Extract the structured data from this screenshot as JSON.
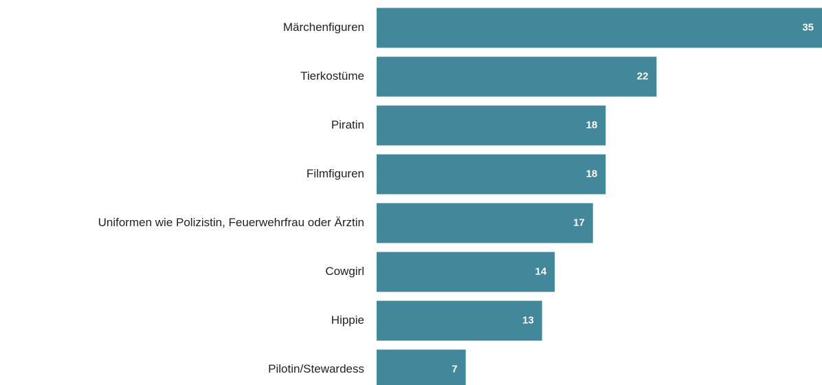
{
  "chart_data": {
    "type": "bar",
    "orientation": "horizontal",
    "categories": [
      "Märchenfiguren",
      "Tierkostüme",
      "Piratin",
      "Filmfiguren",
      "Uniformen wie Polizistin, Feuerwehrfrau oder Ärztin",
      "Cowgirl",
      "Hippie",
      "Pilotin/Stewardess"
    ],
    "values": [
      35,
      22,
      18,
      18,
      17,
      14,
      13,
      7
    ],
    "color": "#43879b"
  }
}
